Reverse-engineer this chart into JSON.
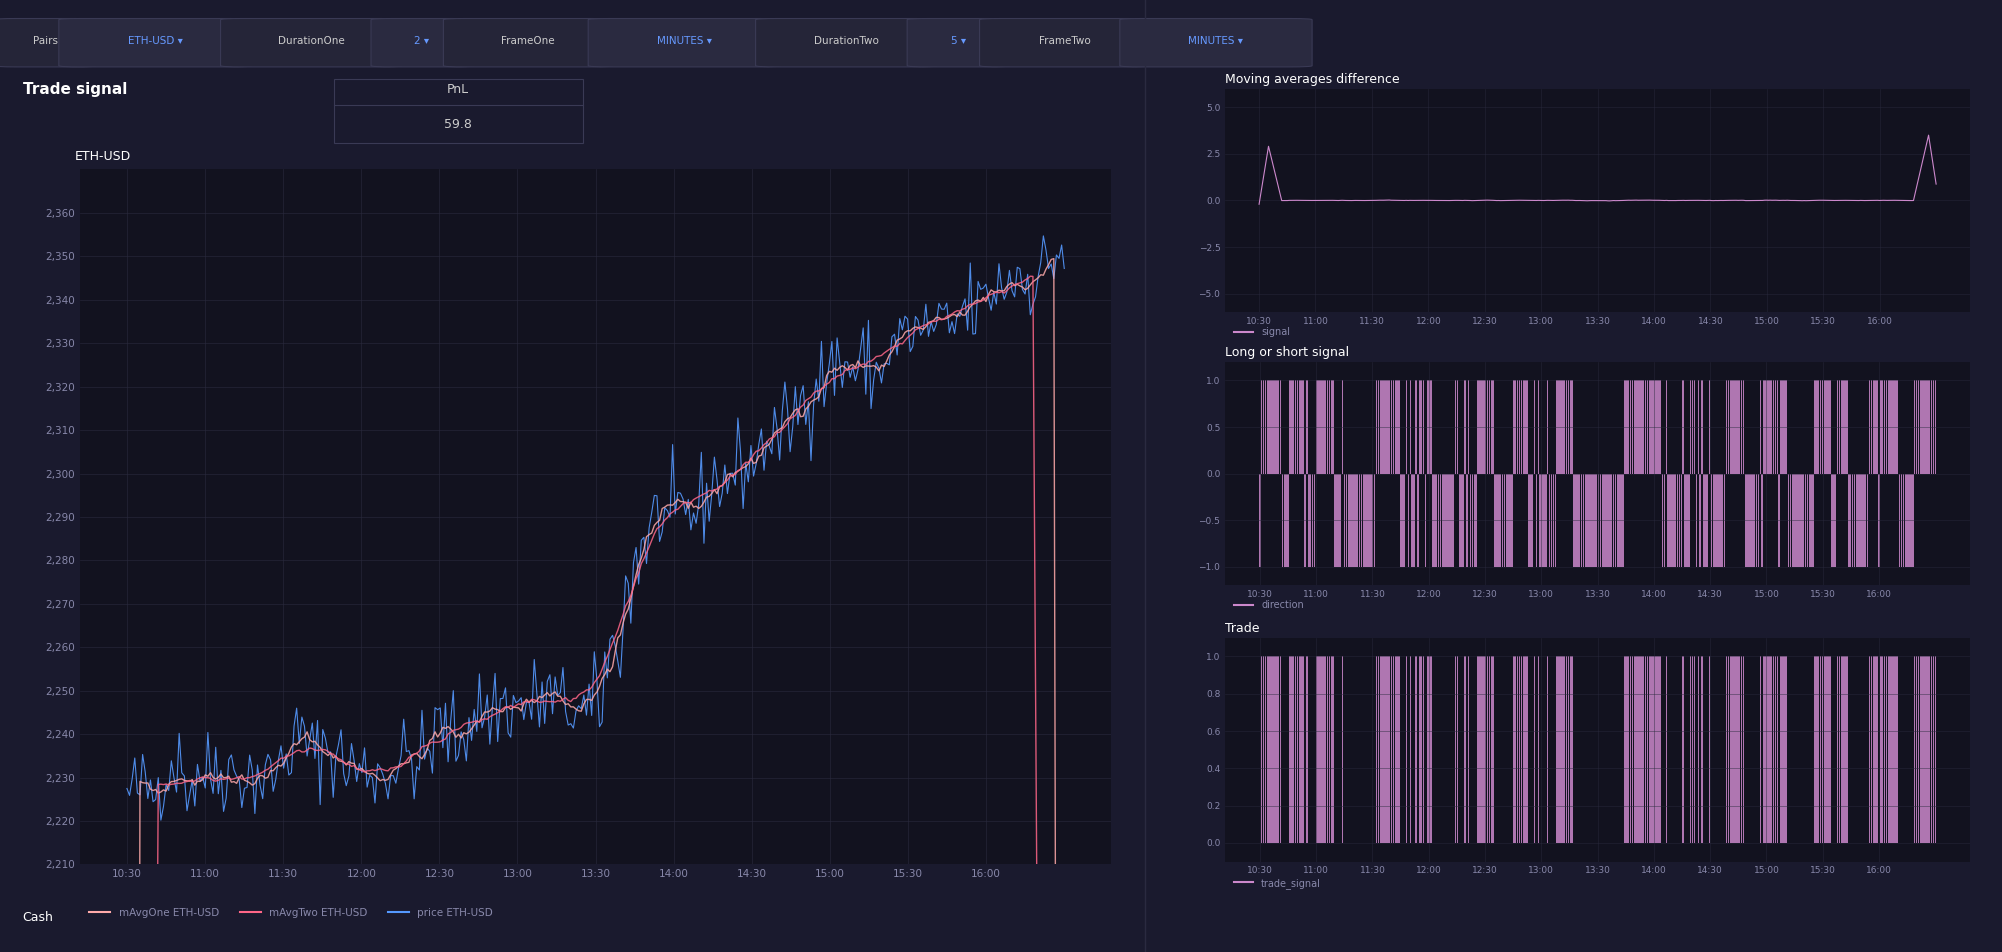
{
  "bg_color": "#1a1a2e",
  "bg_dark": "#12121f",
  "plot_bg": "#12121f",
  "grid_color": "#2a2a3e",
  "text_color": "#cccccc",
  "blue_color": "#4a9eff",
  "pink_color": "#cc88cc",
  "title_color": "#ffffff",
  "label_color": "#8888aa",
  "toolbar_bg": "#1e1e30",
  "button_bg": "#2a2a40",
  "button_text": "#6699ff",
  "pnl_value": "59.8",
  "main_title": "Trade signal",
  "pair_label": "ETH-USD",
  "chart1_title": "ETH-USD",
  "chart2_title": "Moving averages difference",
  "chart3_title": "Long or short signal",
  "chart4_title": "Trade",
  "legend1_labels": [
    "mAvgOne ETH-USD",
    "mAvgTwo ETH-USD",
    "price ETH-USD"
  ],
  "legend1_colors": [
    "#ffaaaa",
    "#ff6688",
    "#5599ff"
  ],
  "legend2_label": "signal",
  "legend3_label": "direction",
  "legend4_label": "trade_signal",
  "x_labels": [
    "10:30",
    "11:00",
    "11:30",
    "12:00",
    "12:30",
    "13:00",
    "13:30",
    "14:00",
    "14:30",
    "15:00",
    "15:30",
    "16:00"
  ],
  "ylim_price": [
    2210,
    2370
  ],
  "yticks_price": [
    2210,
    2220,
    2230,
    2240,
    2250,
    2260,
    2270,
    2280,
    2290,
    2300,
    2310,
    2320,
    2330,
    2340,
    2350,
    2360
  ],
  "ylim_signal": [
    -6,
    6
  ],
  "yticks_signal": [
    -5,
    -2.5,
    0,
    2.5,
    5
  ],
  "ylim_direction": [
    -1.2,
    1.2
  ],
  "yticks_direction": [
    -1,
    -0.5,
    0,
    0.5,
    1
  ],
  "ylim_trade": [
    -0.1,
    1.1
  ],
  "yticks_trade": [
    0,
    0.2,
    0.4,
    0.6,
    0.8,
    1
  ],
  "cash_label": "Cash",
  "separator_color": "#2a2a40",
  "table_border_color": "#3a3a55",
  "price_line_color": "#5599ff",
  "mavg1_color": "#ffaaaa",
  "mavg2_color": "#ff6688"
}
